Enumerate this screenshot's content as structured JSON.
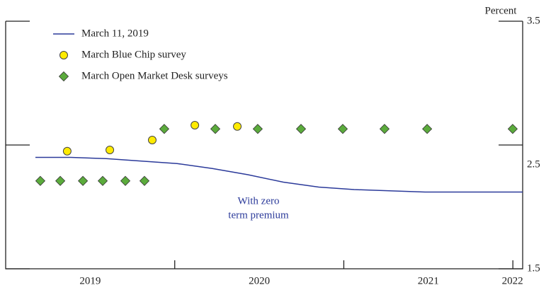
{
  "chart_data": {
    "type": "line",
    "yaxis_label": "Percent",
    "annotation": [
      "With zero",
      "term premium"
    ],
    "xlim": [
      2019,
      2022.058
    ],
    "xticks": [
      2020,
      2021,
      2022
    ],
    "xtick_labels": [
      2019,
      2020,
      2021,
      2022
    ],
    "ylim": [
      1.5,
      3.5
    ],
    "yticks": [
      1.5,
      2.5,
      3.5
    ],
    "series": [
      {
        "name": "March 11, 2019",
        "kind": "line",
        "color": "#2b3a9a",
        "x": [
          2019.176,
          2019.385,
          2019.595,
          2019.804,
          2020.014,
          2020.223,
          2020.433,
          2020.642,
          2020.852,
          2021.061,
          2021.271,
          2021.48,
          2021.69,
          2022.058
        ],
        "values": [
          2.4,
          2.4,
          2.39,
          2.37,
          2.35,
          2.31,
          2.26,
          2.2,
          2.16,
          2.14,
          2.13,
          2.12,
          2.12,
          2.12
        ]
      },
      {
        "name": "March Blue Chip survey",
        "kind": "circle",
        "color": "#ffeb00",
        "x": [
          2019.364,
          2019.616,
          2019.867,
          2020.119,
          2020.37
        ],
        "values": [
          2.45,
          2.46,
          2.54,
          2.66,
          2.65
        ]
      },
      {
        "name": "March Open Market Desk surveys",
        "kind": "diamond",
        "color": "#5bab3c",
        "x": [
          2019.205,
          2019.323,
          2019.457,
          2019.574,
          2019.708,
          2019.821,
          2019.938,
          2020.24,
          2020.491,
          2020.747,
          2020.994,
          2021.241,
          2021.493,
          2021.999
        ],
        "values": [
          2.21,
          2.21,
          2.21,
          2.21,
          2.21,
          2.21,
          2.63,
          2.63,
          2.63,
          2.63,
          2.63,
          2.63,
          2.63,
          2.63
        ]
      }
    ]
  }
}
